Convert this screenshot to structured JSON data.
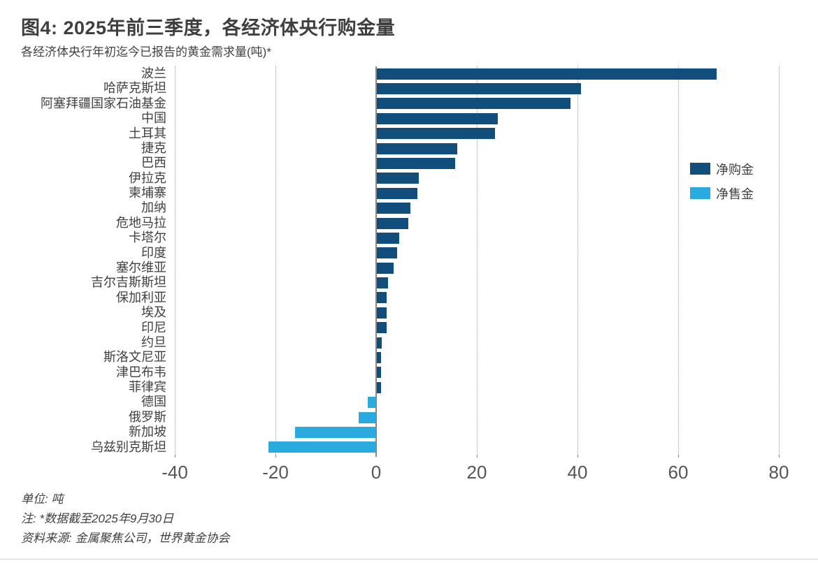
{
  "colors": {
    "net_purchase": "#114E7C",
    "net_sale": "#29ABE0",
    "grid": "#a9abae",
    "axis": "#85878a",
    "text": "#414042",
    "tick_text": "#55565a"
  },
  "footer": {
    "unit": "单位: 吨",
    "note": "注: *数据截至2025年9月30日",
    "source": "资料来源: 金属聚焦公司，世界黄金协会"
  },
  "chart_data": {
    "type": "bar",
    "orientation": "horizontal",
    "title": "图4: 2025年前三季度，各经济体央行购金量",
    "subtitle": "各经济体央行年初迄今已报告的黄金需求量(吨)*",
    "xlabel": "",
    "ylabel": "",
    "xlim": [
      -40,
      85
    ],
    "xticks": [
      -40,
      -20,
      0,
      20,
      40,
      60,
      80
    ],
    "grid": "vertical-dotted",
    "legend_position": "right",
    "categories": [
      "波兰",
      "哈萨克斯坦",
      "阿塞拜疆国家石油基金",
      "中国",
      "土耳其",
      "捷克",
      "巴西",
      "伊拉克",
      "柬埔寨",
      "加纳",
      "危地马拉",
      "卡塔尔",
      "印度",
      "塞尔维亚",
      "吉尔吉斯斯坦",
      "保加利亚",
      "埃及",
      "印尼",
      "约旦",
      "斯洛文尼亚",
      "津巴布韦",
      "菲律宾",
      "德国",
      "俄罗斯",
      "新加坡",
      "乌兹别克斯坦"
    ],
    "values": [
      67.5,
      40.5,
      38.5,
      24,
      23.5,
      16,
      15.5,
      8.3,
      8,
      6.6,
      6.2,
      4.4,
      4,
      3.3,
      2.2,
      2,
      2,
      1.9,
      1,
      0.9,
      0.9,
      0.8,
      -1.5,
      -3.3,
      -16,
      -21.3
    ],
    "legend": [
      {
        "label": "净购金",
        "key": "net_purchase"
      },
      {
        "label": "净售金",
        "key": "net_sale"
      }
    ]
  }
}
